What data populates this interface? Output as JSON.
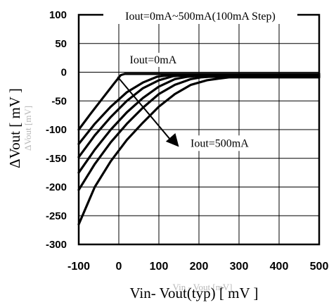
{
  "chart_data": {
    "type": "line",
    "title": "Iout=0mA~500mA(100mA Step)",
    "xlabel": "Vin- Vout(typ) [ mV ]",
    "ylabel": "ΔVout [ mV ]",
    "xlim": [
      -100,
      500
    ],
    "ylim": [
      -300,
      100
    ],
    "xticks": [
      -100,
      0,
      100,
      200,
      300,
      400,
      500
    ],
    "yticks": [
      100,
      50,
      0,
      -50,
      -100,
      -150,
      -200,
      -250,
      -300
    ],
    "grid": true,
    "annotations": [
      {
        "text": "Iout=0mA",
        "x": 50,
        "y": -3
      },
      {
        "text": "Iout=500mA",
        "x": 200,
        "y": -120
      }
    ],
    "ghost_text": [
      "Vin - Vout [mV]",
      "ΔVout [mV]"
    ],
    "series": [
      {
        "x": [
          -100,
          -70,
          -40,
          -10,
          5,
          15,
          500
        ],
        "y": [
          -100,
          -72,
          -45,
          -18,
          -5,
          -3,
          -3
        ]
      },
      {
        "x": [
          -100,
          -60,
          -20,
          20,
          60,
          95,
          115,
          130,
          500
        ],
        "y": [
          -125,
          -90,
          -60,
          -35,
          -18,
          -8,
          -6,
          -5,
          -5
        ]
      },
      {
        "x": [
          -100,
          -60,
          -20,
          20,
          60,
          100,
          135,
          155,
          500
        ],
        "y": [
          -148,
          -110,
          -78,
          -50,
          -28,
          -14,
          -7,
          -6,
          -6
        ]
      },
      {
        "x": [
          -100,
          -60,
          -20,
          20,
          60,
          100,
          140,
          170,
          190,
          500
        ],
        "y": [
          -175,
          -135,
          -100,
          -70,
          -45,
          -25,
          -12,
          -8,
          -7,
          -7
        ]
      },
      {
        "x": [
          -100,
          -60,
          -20,
          20,
          60,
          100,
          140,
          180,
          205,
          225,
          500
        ],
        "y": [
          -205,
          -160,
          -122,
          -90,
          -62,
          -38,
          -22,
          -12,
          -9,
          -8,
          -8
        ]
      },
      {
        "x": [
          -100,
          -60,
          -20,
          20,
          60,
          100,
          140,
          180,
          220,
          250,
          275,
          500
        ],
        "y": [
          -265,
          -200,
          -155,
          -118,
          -88,
          -60,
          -38,
          -22,
          -14,
          -11,
          -9,
          -9
        ]
      }
    ]
  }
}
